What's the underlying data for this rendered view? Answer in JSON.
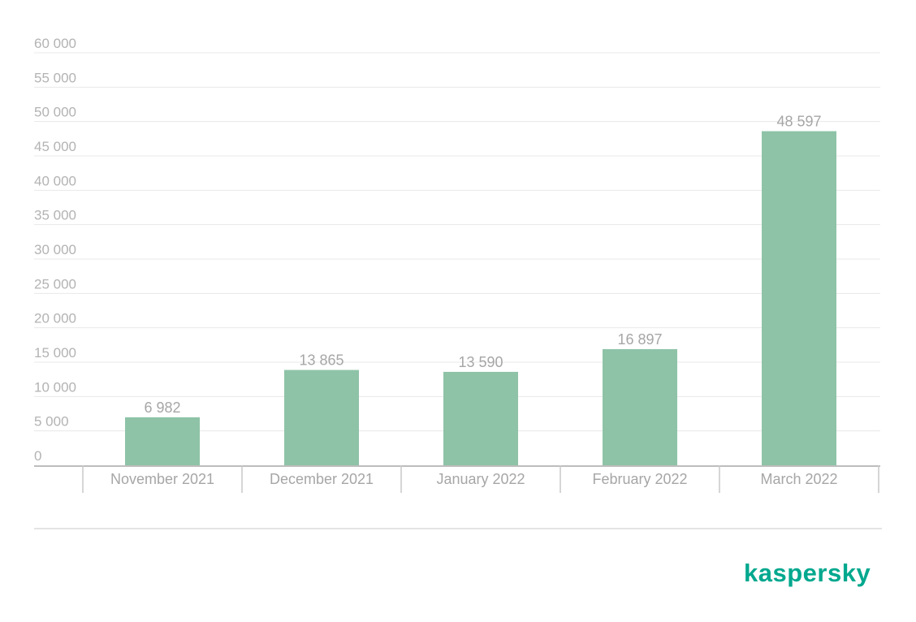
{
  "chart_data": {
    "type": "bar",
    "categories": [
      "November 2021",
      "December 2021",
      "January 2022",
      "February 2022",
      "March 2022"
    ],
    "values": [
      6982,
      13865,
      13590,
      16897,
      48597
    ],
    "value_labels": [
      "6 982",
      "13 865",
      "13 590",
      "16 897",
      "48 597"
    ],
    "ylim": [
      0,
      60000
    ],
    "yticks": [
      0,
      5000,
      10000,
      15000,
      20000,
      25000,
      30000,
      35000,
      40000,
      45000,
      50000,
      55000,
      60000
    ],
    "ytick_labels": [
      "0",
      "5 000",
      "10 000",
      "15 000",
      "20 000",
      "25 000",
      "30 000",
      "35 000",
      "40 000",
      "45 000",
      "50 000",
      "55 000",
      "60 000"
    ],
    "grid": true,
    "bar_color": "#8ec3a7"
  },
  "brand": {
    "logo_text": "kaspersky",
    "color": "#00a88e"
  }
}
